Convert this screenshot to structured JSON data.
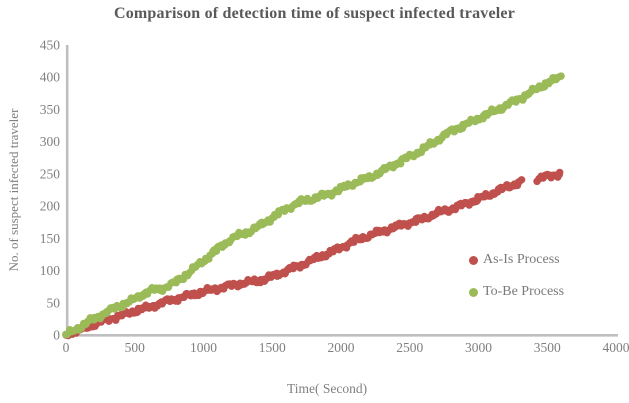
{
  "chart_data": {
    "type": "scatter",
    "title": "Comparison of detection time of suspect infected traveler",
    "xlabel": "Time( Second)",
    "ylabel": "No. of suspect  infected traveler",
    "xlim": [
      0,
      4000
    ],
    "ylim": [
      0,
      450
    ],
    "x_ticks": [
      0,
      500,
      1000,
      1500,
      2000,
      2500,
      3000,
      3500,
      4000
    ],
    "y_ticks": [
      0,
      50,
      100,
      150,
      200,
      250,
      300,
      350,
      400,
      450
    ],
    "grid": false,
    "legend_position": "inside-right",
    "colors": {
      "axis_line": "#bfbfbf",
      "tick_text": "#808080",
      "title_text": "#595959",
      "legend_text": "#7a7a7a"
    },
    "series": [
      {
        "name": "As-Is Process",
        "color": "#C0504D",
        "marker": "circle",
        "segments": [
          [
            [
              0,
              0
            ],
            [
              100,
              8
            ],
            [
              200,
              16
            ],
            [
              300,
              24
            ],
            [
              400,
              30
            ],
            [
              500,
              37
            ],
            [
              600,
              43
            ],
            [
              700,
              50
            ],
            [
              800,
              56
            ],
            [
              900,
              62
            ],
            [
              1000,
              67
            ],
            [
              1100,
              72
            ],
            [
              1200,
              77
            ],
            [
              1300,
              81
            ],
            [
              1400,
              84
            ],
            [
              1500,
              91
            ],
            [
              1600,
              99
            ],
            [
              1700,
              108
            ],
            [
              1800,
              117
            ],
            [
              1900,
              126
            ],
            [
              2000,
              136
            ],
            [
              2100,
              146
            ],
            [
              2200,
              154
            ],
            [
              2300,
              161
            ],
            [
              2400,
              168
            ],
            [
              2500,
              174
            ],
            [
              2600,
              181
            ],
            [
              2700,
              189
            ],
            [
              2800,
              196
            ],
            [
              2900,
              203
            ],
            [
              3000,
              211
            ],
            [
              3100,
              220
            ],
            [
              3200,
              229
            ],
            [
              3310,
              238
            ]
          ],
          [
            [
              3425,
              242
            ],
            [
              3500,
              246
            ],
            [
              3600,
              251
            ]
          ]
        ]
      },
      {
        "name": "To-Be Process",
        "color": "#9BBB59",
        "marker": "circle",
        "segments": [
          [
            [
              0,
              0
            ],
            [
              100,
              12
            ],
            [
              200,
              25
            ],
            [
              300,
              36
            ],
            [
              400,
              46
            ],
            [
              500,
              56
            ],
            [
              600,
              68
            ],
            [
              700,
              72
            ],
            [
              800,
              82
            ],
            [
              900,
              98
            ],
            [
              1000,
              115
            ],
            [
              1100,
              133
            ],
            [
              1200,
              149
            ],
            [
              1300,
              158
            ],
            [
              1400,
              168
            ],
            [
              1500,
              182
            ],
            [
              1600,
              196
            ],
            [
              1700,
              206
            ],
            [
              1800,
              212
            ],
            [
              1900,
              218
            ],
            [
              2000,
              227
            ],
            [
              2100,
              236
            ],
            [
              2200,
              244
            ],
            [
              2300,
              254
            ],
            [
              2400,
              266
            ],
            [
              2500,
              277
            ],
            [
              2600,
              288
            ],
            [
              2700,
              303
            ],
            [
              2800,
              316
            ],
            [
              2900,
              326
            ],
            [
              3000,
              336
            ],
            [
              3100,
              346
            ],
            [
              3200,
              356
            ],
            [
              3300,
              367
            ],
            [
              3400,
              379
            ],
            [
              3500,
              391
            ],
            [
              3600,
              401
            ]
          ]
        ]
      }
    ]
  }
}
